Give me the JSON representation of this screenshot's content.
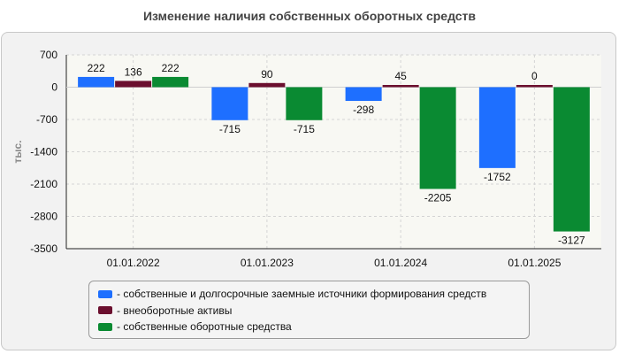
{
  "chart_data": {
    "type": "bar",
    "title": "Изменение наличия собственных оборотных средств",
    "ylabel": "тыс.",
    "xlabel": "",
    "categories": [
      "01.01.2022",
      "01.01.2023",
      "01.01.2024",
      "01.01.2025"
    ],
    "series": [
      {
        "name": "- собственные и долгосрочные заемные источники формирования средств",
        "color": "#1e6fff",
        "values": [
          222,
          -715,
          -298,
          -1752
        ]
      },
      {
        "name": "- внеоборотные активы",
        "color": "#6b0f2e",
        "values": [
          136,
          90,
          45,
          0
        ]
      },
      {
        "name": "- собственные оборотные средства",
        "color": "#0a8a32",
        "values": [
          222,
          -715,
          -2205,
          -3127
        ]
      }
    ],
    "ylim": [
      -3500,
      700
    ],
    "yticks": [
      700,
      0,
      -700,
      -1400,
      -2100,
      -2800,
      -3500
    ],
    "legend_position": "bottom",
    "grid": true
  }
}
